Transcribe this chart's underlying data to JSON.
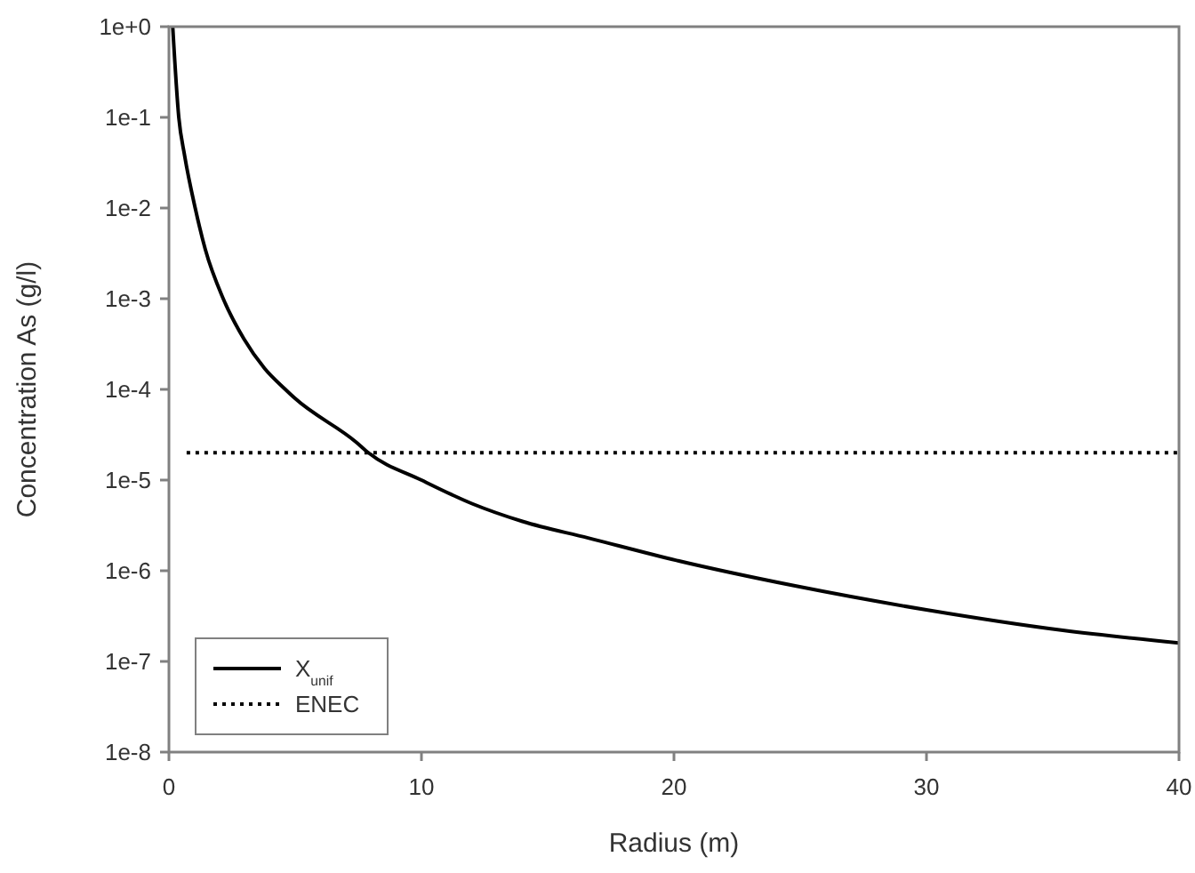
{
  "chart_data": {
    "type": "line",
    "xlabel": "Radius (m)",
    "ylabel": "Concentration As (g/l)",
    "log": "y",
    "grid": false,
    "legend": "bottom left",
    "marker": "none",
    "xlim": [
      0,
      40
    ],
    "xticks": [
      0,
      10,
      20,
      30,
      40
    ],
    "ylim": [
      1e-08,
      1
    ],
    "yticks": [
      {
        "value": 1,
        "label": "1e+0"
      },
      {
        "value": 0.1,
        "label": "1e-1"
      },
      {
        "value": 0.01,
        "label": "1e-2"
      },
      {
        "value": 0.001,
        "label": "1e-3"
      },
      {
        "value": 0.0001,
        "label": "1e-4"
      },
      {
        "value": 1e-05,
        "label": "1e-5"
      },
      {
        "value": 1e-06,
        "label": "1e-6"
      },
      {
        "value": 1e-07,
        "label": "1e-7"
      },
      {
        "value": 1e-08,
        "label": "1e-8"
      }
    ],
    "series": [
      {
        "name": "X$_{unif}$",
        "color": "#000000",
        "line_style": "solid",
        "x": [
          0.15,
          0.39,
          0.62,
          1.04,
          1.44,
          2.15,
          2.97,
          3.79,
          4.61,
          4.96,
          7.43,
          7.9,
          10,
          12,
          14,
          16.6,
          20.1,
          24.8,
          30,
          35.4,
          40
        ],
        "values": [
          1,
          0.1,
          0.038,
          0.01,
          0.0035,
          0.001,
          0.00036,
          0.00017,
          0.0001,
          8.1e-05,
          2.6e-05,
          2e-05,
          1e-05,
          5.5e-06,
          3.5e-06,
          2.3e-06,
          1.3e-06,
          6.8e-07,
          3.7e-07,
          2.2e-07,
          1.6e-07
        ]
      },
      {
        "name": "ENEC",
        "color": "#000000",
        "line_style": "dotted",
        "x": [
          0.7,
          40
        ],
        "values": [
          2e-05,
          2e-05
        ]
      }
    ]
  }
}
